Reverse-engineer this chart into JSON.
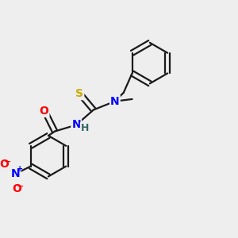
{
  "background_color": "#eeeeee",
  "bond_color": "#1a1a1a",
  "atom_colors": {
    "N": "#0000ff",
    "O": "#ff0000",
    "S": "#ccaa00",
    "H": "#336666",
    "C": "#1a1a1a"
  },
  "figsize": [
    3.0,
    3.0
  ],
  "dpi": 100,
  "lw": 1.6,
  "fontsize": 10
}
